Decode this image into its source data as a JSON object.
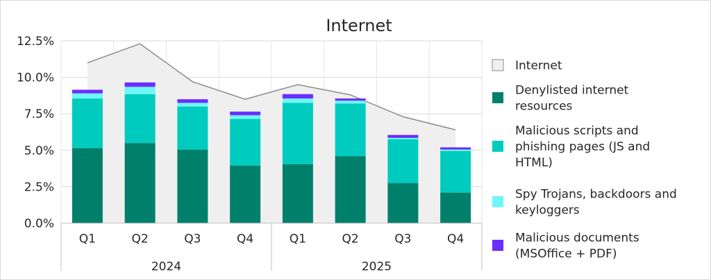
{
  "chart_data": {
    "type": "bar",
    "title": "Internet",
    "xlabel": "",
    "ylabel": "",
    "ylim": [
      0,
      12.5
    ],
    "y_ticks": [
      "0.0%",
      "2.5%",
      "5.0%",
      "7.5%",
      "10.0%",
      "12.5%"
    ],
    "y_tick_values": [
      0,
      2.5,
      5,
      7.5,
      10,
      12.5
    ],
    "grid": true,
    "legend_position": "right",
    "categories": [
      "Q1",
      "Q2",
      "Q3",
      "Q4",
      "Q1",
      "Q2",
      "Q3",
      "Q4"
    ],
    "groups": [
      {
        "label": "2024",
        "categories": [
          "Q1",
          "Q2",
          "Q3",
          "Q4"
        ]
      },
      {
        "label": "2025",
        "categories": [
          "Q1",
          "Q2",
          "Q3",
          "Q4"
        ]
      }
    ],
    "area": {
      "name": "Internet",
      "values": [
        11.0,
        12.3,
        9.7,
        8.5,
        9.5,
        8.8,
        7.3,
        6.4
      ],
      "color": "#efefef",
      "stroke": "#8c8c8c"
    },
    "series": [
      {
        "name": "Denylisted internet resources",
        "color": "#00806b",
        "values": [
          5.15,
          5.5,
          5.05,
          3.95,
          4.05,
          4.6,
          2.75,
          2.1
        ]
      },
      {
        "name": "Malicious scripts and phishing pages (JS and HTML)",
        "color": "#00cbbf",
        "values": [
          3.4,
          3.35,
          2.95,
          3.2,
          4.2,
          3.6,
          3.0,
          2.85
        ]
      },
      {
        "name": "Spy Trojans, backdoors and keyloggers",
        "color": "#6ff7f7",
        "values": [
          0.35,
          0.5,
          0.25,
          0.25,
          0.3,
          0.2,
          0.1,
          0.1
        ]
      },
      {
        "name": "Malicious documents (MSOffice + PDF)",
        "color": "#6b2eff",
        "values": [
          0.25,
          0.3,
          0.25,
          0.25,
          0.3,
          0.15,
          0.2,
          0.15
        ]
      }
    ]
  },
  "legend": [
    {
      "lines": [
        "Internet"
      ],
      "color": "#efefef",
      "stroke": "#8c8c8c"
    },
    {
      "lines": [
        "Denylisted internet",
        "resources"
      ],
      "color": "#00806b"
    },
    {
      "lines": [
        "Malicious scripts and",
        "phishing pages (JS and",
        "HTML)"
      ],
      "color": "#00cbbf"
    },
    {
      "lines": [
        "Spy Trojans, backdoors and",
        "keyloggers"
      ],
      "color": "#6ff7f7"
    },
    {
      "lines": [
        "Malicious documents",
        "(MSOffice + PDF)"
      ],
      "color": "#6b2eff"
    }
  ]
}
